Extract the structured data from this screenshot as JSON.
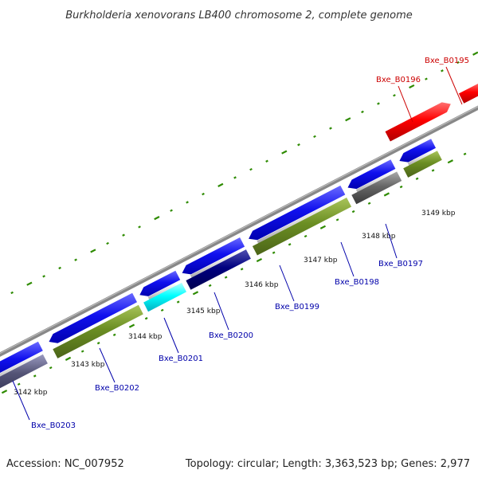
{
  "title": "Burkholderia xenovorans LB400 chromosome 2, complete genome",
  "footer": {
    "accession": "Accession: NC_007952",
    "summary": "Topology: circular; Length: 3,363,523 bp; Genes: 2,977"
  },
  "ticks": [
    {
      "label": "3142 kbp"
    },
    {
      "label": "3143 kbp"
    },
    {
      "label": "3144 kbp"
    },
    {
      "label": "3145 kbp"
    },
    {
      "label": "3146 kbp"
    },
    {
      "label": "3147 kbp"
    },
    {
      "label": "3148 kbp"
    },
    {
      "label": "3149 kbp"
    }
  ],
  "gene_labels": [
    {
      "label": "Bxe_B0195",
      "color": "#cc0000"
    },
    {
      "label": "Bxe_B0196",
      "color": "#cc0000"
    },
    {
      "label": "Bxe_B0197",
      "color": "#0000aa"
    },
    {
      "label": "Bxe_B0198",
      "color": "#0000aa"
    },
    {
      "label": "Bxe_B0199",
      "color": "#0000aa"
    },
    {
      "label": "Bxe_B0200",
      "color": "#0000aa"
    },
    {
      "label": "Bxe_B0201",
      "color": "#0000aa"
    },
    {
      "label": "Bxe_B0202",
      "color": "#0000aa"
    },
    {
      "label": "Bxe_B0203",
      "color": "#0000aa"
    }
  ],
  "colors": {
    "forward_cds": "#ff0000",
    "reverse_cds": "#0000ee",
    "cog_green": "#6b8e23",
    "cog_cyan": "#00ffff",
    "cog_gray": "#666666",
    "cog_navy": "#000080",
    "cog_slate": "#555577",
    "backbone": "#888888",
    "tick_marks": "#2e8b00"
  }
}
